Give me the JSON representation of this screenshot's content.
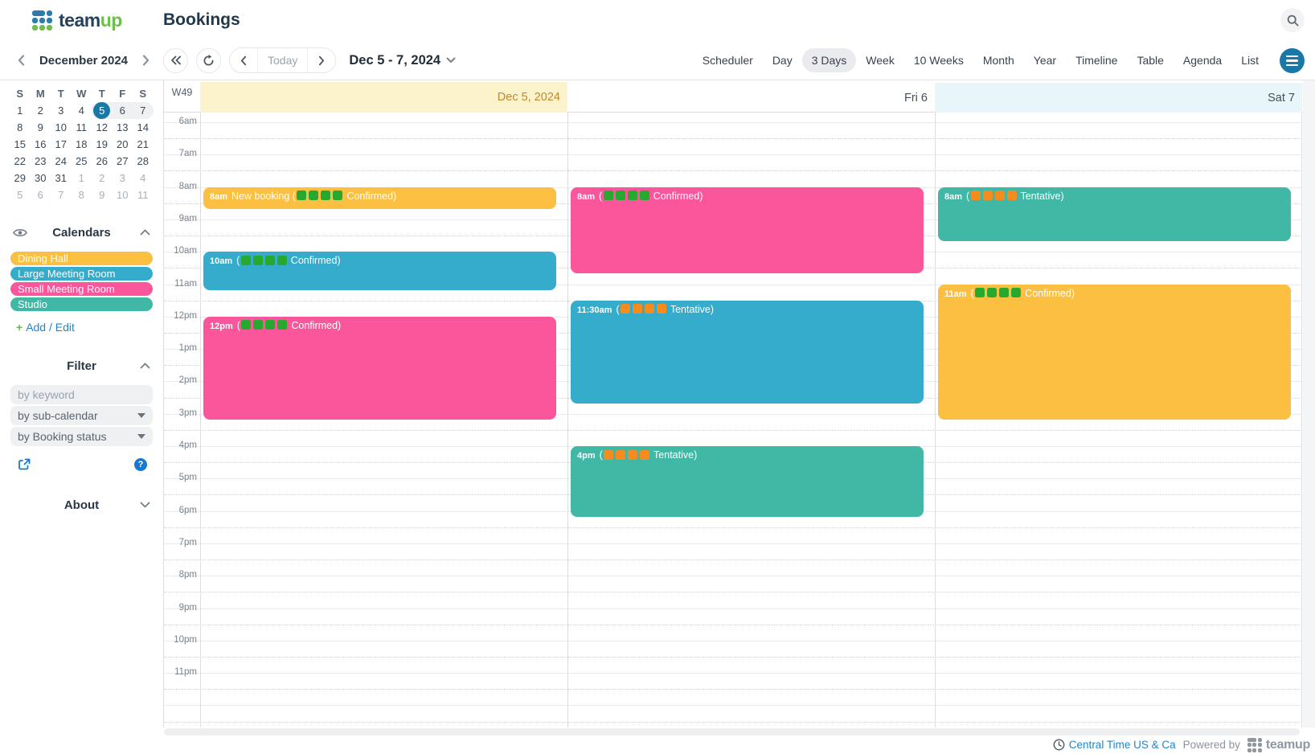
{
  "header": {
    "logo_team": "team",
    "logo_up": "up",
    "title": "Bookings"
  },
  "toolbar": {
    "mini_month": "December 2024",
    "today_label": "Today",
    "range_label": "Dec 5 - 7, 2024",
    "views": [
      {
        "label": "Scheduler",
        "active": false
      },
      {
        "label": "Day",
        "active": false
      },
      {
        "label": "3 Days",
        "active": true
      },
      {
        "label": "Week",
        "active": false
      },
      {
        "label": "10 Weeks",
        "active": false
      },
      {
        "label": "Month",
        "active": false
      },
      {
        "label": "Year",
        "active": false
      },
      {
        "label": "Timeline",
        "active": false
      },
      {
        "label": "Table",
        "active": false
      },
      {
        "label": "Agenda",
        "active": false
      },
      {
        "label": "List",
        "active": false
      }
    ]
  },
  "mini_calendar": {
    "dow": [
      "S",
      "M",
      "T",
      "W",
      "T",
      "F",
      "S"
    ],
    "weeks": [
      [
        {
          "d": "1"
        },
        {
          "d": "2"
        },
        {
          "d": "3"
        },
        {
          "d": "4"
        },
        {
          "d": "5",
          "s": true,
          "r": true,
          "rs": true
        },
        {
          "d": "6",
          "r": true
        },
        {
          "d": "7",
          "r": true,
          "re": true
        }
      ],
      [
        {
          "d": "8"
        },
        {
          "d": "9"
        },
        {
          "d": "10"
        },
        {
          "d": "11"
        },
        {
          "d": "12"
        },
        {
          "d": "13"
        },
        {
          "d": "14"
        }
      ],
      [
        {
          "d": "15"
        },
        {
          "d": "16"
        },
        {
          "d": "17"
        },
        {
          "d": "18"
        },
        {
          "d": "19"
        },
        {
          "d": "20"
        },
        {
          "d": "21"
        }
      ],
      [
        {
          "d": "22"
        },
        {
          "d": "23"
        },
        {
          "d": "24"
        },
        {
          "d": "25"
        },
        {
          "d": "26"
        },
        {
          "d": "27"
        },
        {
          "d": "28"
        }
      ],
      [
        {
          "d": "29"
        },
        {
          "d": "30"
        },
        {
          "d": "31"
        },
        {
          "d": "1",
          "m": true
        },
        {
          "d": "2",
          "m": true
        },
        {
          "d": "3",
          "m": true
        },
        {
          "d": "4",
          "m": true
        }
      ],
      [
        {
          "d": "5",
          "m": true
        },
        {
          "d": "6",
          "m": true
        },
        {
          "d": "7",
          "m": true
        },
        {
          "d": "8",
          "m": true
        },
        {
          "d": "9",
          "m": true
        },
        {
          "d": "10",
          "m": true
        },
        {
          "d": "11",
          "m": true
        }
      ]
    ]
  },
  "sidebar": {
    "calendars_title": "Calendars",
    "calendars": [
      {
        "name": "Dining Hall",
        "color": "#FBBF42"
      },
      {
        "name": "Large Meeting Room",
        "color": "#35ACCC"
      },
      {
        "name": "Small Meeting Room",
        "color": "#F9569C"
      },
      {
        "name": "Studio",
        "color": "#41B7A5"
      }
    ],
    "add_plus": "+",
    "add_label": "Add / Edit",
    "filter_title": "Filter",
    "keyword_placeholder": "by keyword",
    "subcalendar_filter": "by sub-calendar",
    "status_filter": "by Booking status",
    "about_title": "About"
  },
  "calendar": {
    "week_label": "W49",
    "days": [
      {
        "label": "Dec 5, 2024",
        "type": "today"
      },
      {
        "label": "Fri 6",
        "type": "normal"
      },
      {
        "label": "Sat 7",
        "type": "weekend"
      }
    ],
    "hours": [
      "6am",
      "7am",
      "8am",
      "9am",
      "10am",
      "11am",
      "12pm",
      "1pm",
      "2pm",
      "3pm",
      "4pm",
      "5pm",
      "6pm",
      "7pm",
      "8pm",
      "9pm",
      "10pm",
      "11pm"
    ],
    "events": [
      {
        "day": 0,
        "start": 8,
        "end": 8.75,
        "color": "#FBBF42",
        "time_label": "8am",
        "prefix": "New booking (",
        "squares": "green",
        "square_count": 4,
        "suffix": "Confirmed)"
      },
      {
        "day": 0,
        "start": 10,
        "end": 11.25,
        "color": "#35ACCC",
        "time_label": "10am",
        "prefix": "(",
        "squares": "green",
        "square_count": 4,
        "suffix": "Confirmed)"
      },
      {
        "day": 0,
        "start": 12,
        "end": 15.25,
        "color": "#F9569C",
        "time_label": "12pm",
        "prefix": "(",
        "squares": "green",
        "square_count": 4,
        "suffix": "Confirmed)"
      },
      {
        "day": 1,
        "start": 8,
        "end": 10.75,
        "color": "#F9569C",
        "time_label": "8am",
        "prefix": "(",
        "squares": "green",
        "square_count": 4,
        "suffix": "Confirmed)"
      },
      {
        "day": 1,
        "start": 11.5,
        "end": 14.75,
        "color": "#35ACCC",
        "time_label": "11:30am",
        "prefix": "(",
        "squares": "orange",
        "square_count": 4,
        "suffix": "Tentative)"
      },
      {
        "day": 1,
        "start": 16,
        "end": 18.25,
        "color": "#41B7A5",
        "time_label": "4pm",
        "prefix": "(",
        "squares": "orange",
        "square_count": 4,
        "suffix": "Tentative)"
      },
      {
        "day": 2,
        "start": 8,
        "end": 9.75,
        "color": "#41B7A5",
        "time_label": "8am",
        "prefix": "(",
        "squares": "orange",
        "square_count": 4,
        "suffix": "Tentative)"
      },
      {
        "day": 2,
        "start": 11,
        "end": 15.25,
        "color": "#FBBF42",
        "time_label": "11am",
        "prefix": "(",
        "squares": "green",
        "square_count": 4,
        "suffix": "Confirmed)"
      }
    ]
  },
  "footer": {
    "timezone": "Central Time US & Ca",
    "powered_by": "Powered by",
    "brand": "teamup"
  },
  "colors": {
    "green_square": "#27A82F",
    "orange_square": "#F68B1E",
    "today_header_bg": "#FCF2CB",
    "weekend_header_bg": "#E9F6F9",
    "accent_blue": "#1879A9",
    "link_blue": "#1F86C9"
  }
}
